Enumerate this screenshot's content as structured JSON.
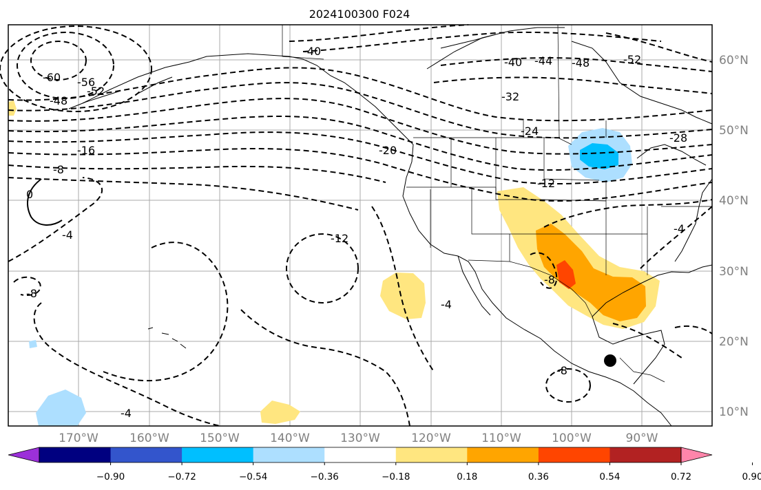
{
  "title": "2024100300 F024",
  "map": {
    "lat_labels": [
      "60°N",
      "50°N",
      "40°N",
      "30°N",
      "20°N",
      "10°N"
    ],
    "lon_labels": [
      "170°W",
      "160°W",
      "150°W",
      "140°W",
      "130°W",
      "120°W",
      "110°W",
      "100°W",
      "90°W"
    ],
    "contour_labels": [
      "-60",
      "-56",
      "-52",
      "-48",
      "-40",
      "-40",
      "-44",
      "-48",
      "-52",
      "-32",
      "-24",
      "-28",
      "-20",
      "-16",
      "-8",
      "0",
      "-4",
      "-12",
      "-12",
      "-8",
      "-8",
      "-4",
      "-4",
      "-8",
      "-4"
    ],
    "station_marker": "black-dot"
  },
  "colorbar": {
    "ticks": [
      "−0.90",
      "−0.72",
      "−0.54",
      "−0.36",
      "−0.18",
      "0.18",
      "0.36",
      "0.54",
      "0.72",
      "0.90"
    ],
    "colors": [
      "#9b30d9",
      "#000080",
      "#3355cc",
      "#00bfff",
      "#addfff",
      "#ffffff",
      "#ffe680",
      "#ffa500",
      "#ff4500",
      "#b22222",
      "#ff85aa"
    ]
  }
}
